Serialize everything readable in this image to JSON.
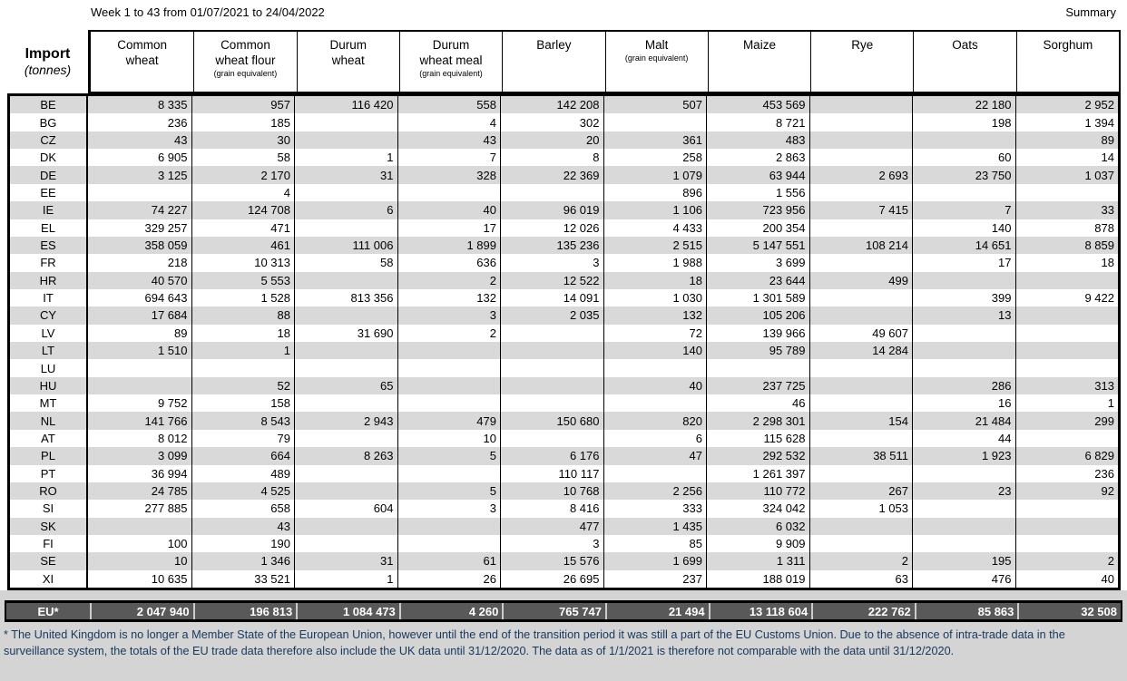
{
  "header": {
    "title": "Week 1 to 43 from 01/07/2021 to 24/04/2022",
    "summary_label": "Summary"
  },
  "table": {
    "corner": {
      "label": "Import",
      "unit": "(tonnes)"
    },
    "columns": [
      {
        "label": "Common\nwheat",
        "sub": ""
      },
      {
        "label": "Common\nwheat flour",
        "sub": "(grain equivalent)"
      },
      {
        "label": "Durum\nwheat",
        "sub": ""
      },
      {
        "label": "Durum\nwheat meal",
        "sub": "(grain equivalent)"
      },
      {
        "label": "Barley",
        "sub": ""
      },
      {
        "label": "Malt",
        "sub": "(grain equivalent)"
      },
      {
        "label": "Maize",
        "sub": ""
      },
      {
        "label": "Rye",
        "sub": ""
      },
      {
        "label": "Oats",
        "sub": ""
      },
      {
        "label": "Sorghum",
        "sub": ""
      }
    ],
    "rows": [
      {
        "country": "BE",
        "values": [
          "8 335",
          "957",
          "116 420",
          "558",
          "142 208",
          "507",
          "453 569",
          "",
          "22 180",
          "2 952"
        ]
      },
      {
        "country": "BG",
        "values": [
          "236",
          "185",
          "",
          "4",
          "302",
          "",
          "8 721",
          "",
          "198",
          "1 394"
        ]
      },
      {
        "country": "CZ",
        "values": [
          "43",
          "30",
          "",
          "43",
          "20",
          "361",
          "483",
          "",
          "",
          "89"
        ]
      },
      {
        "country": "DK",
        "values": [
          "6 905",
          "58",
          "1",
          "7",
          "8",
          "258",
          "2 863",
          "",
          "60",
          "14"
        ]
      },
      {
        "country": "DE",
        "values": [
          "3 125",
          "2 170",
          "31",
          "328",
          "22 369",
          "1 079",
          "63 944",
          "2 693",
          "23 750",
          "1 037"
        ]
      },
      {
        "country": "EE",
        "values": [
          "",
          "4",
          "",
          "",
          "",
          "896",
          "1 556",
          "",
          "",
          ""
        ]
      },
      {
        "country": "IE",
        "values": [
          "74 227",
          "124 708",
          "6",
          "40",
          "96 019",
          "1 106",
          "723 956",
          "7 415",
          "7",
          "33"
        ]
      },
      {
        "country": "EL",
        "values": [
          "329 257",
          "471",
          "",
          "17",
          "12 026",
          "4 433",
          "200 354",
          "",
          "140",
          "878"
        ]
      },
      {
        "country": "ES",
        "values": [
          "358 059",
          "461",
          "111 006",
          "1 899",
          "135 236",
          "2 515",
          "5 147 551",
          "108 214",
          "14 651",
          "8 859"
        ]
      },
      {
        "country": "FR",
        "values": [
          "218",
          "10 313",
          "58",
          "636",
          "3",
          "1 988",
          "3 699",
          "",
          "17",
          "18"
        ]
      },
      {
        "country": "HR",
        "values": [
          "40 570",
          "5 553",
          "",
          "2",
          "12 522",
          "18",
          "23 644",
          "499",
          "",
          ""
        ]
      },
      {
        "country": "IT",
        "values": [
          "694 643",
          "1 528",
          "813 356",
          "132",
          "14 091",
          "1 030",
          "1 301 589",
          "",
          "399",
          "9 422"
        ]
      },
      {
        "country": "CY",
        "values": [
          "17 684",
          "88",
          "",
          "3",
          "2 035",
          "132",
          "105 206",
          "",
          "13",
          ""
        ]
      },
      {
        "country": "LV",
        "values": [
          "89",
          "18",
          "31 690",
          "2",
          "",
          "72",
          "139 966",
          "49 607",
          "",
          ""
        ]
      },
      {
        "country": "LT",
        "values": [
          "1 510",
          "1",
          "",
          "",
          "",
          "140",
          "95 789",
          "14 284",
          "",
          ""
        ]
      },
      {
        "country": "LU",
        "values": [
          "",
          "",
          "",
          "",
          "",
          "",
          "",
          "",
          "",
          ""
        ]
      },
      {
        "country": "HU",
        "values": [
          "",
          "52",
          "65",
          "",
          "",
          "40",
          "237 725",
          "",
          "286",
          "313"
        ]
      },
      {
        "country": "MT",
        "values": [
          "9 752",
          "158",
          "",
          "",
          "",
          "",
          "46",
          "",
          "16",
          "1"
        ]
      },
      {
        "country": "NL",
        "values": [
          "141 766",
          "8 543",
          "2 943",
          "479",
          "150 680",
          "820",
          "2 298 301",
          "154",
          "21 484",
          "299"
        ]
      },
      {
        "country": "AT",
        "values": [
          "8 012",
          "79",
          "",
          "10",
          "",
          "6",
          "115 628",
          "",
          "44",
          ""
        ]
      },
      {
        "country": "PL",
        "values": [
          "3 099",
          "664",
          "8 263",
          "5",
          "6 176",
          "47",
          "292 532",
          "38 511",
          "1 923",
          "6 829"
        ]
      },
      {
        "country": "PT",
        "values": [
          "36 994",
          "489",
          "",
          "",
          "110 117",
          "",
          "1 261 397",
          "",
          "",
          "236"
        ]
      },
      {
        "country": "RO",
        "values": [
          "24 785",
          "4 525",
          "",
          "5",
          "10 768",
          "2 256",
          "110 772",
          "267",
          "23",
          "92"
        ]
      },
      {
        "country": "SI",
        "values": [
          "277 885",
          "658",
          "604",
          "3",
          "8 416",
          "333",
          "324 042",
          "1 053",
          "",
          ""
        ]
      },
      {
        "country": "SK",
        "values": [
          "",
          "43",
          "",
          "",
          "477",
          "1 435",
          "6 032",
          "",
          "",
          ""
        ]
      },
      {
        "country": "FI",
        "values": [
          "100",
          "190",
          "",
          "",
          "3",
          "85",
          "9 909",
          "",
          "",
          ""
        ]
      },
      {
        "country": "SE",
        "values": [
          "10",
          "1 346",
          "31",
          "61",
          "15 576",
          "1 699",
          "1 311",
          "2",
          "195",
          "2"
        ]
      },
      {
        "country": "XI",
        "values": [
          "10 635",
          "33 521",
          "1",
          "26",
          "26 695",
          "237",
          "188 019",
          "63",
          "476",
          "40"
        ]
      }
    ],
    "total": {
      "label": "EU*",
      "values": [
        "2 047 940",
        "196 813",
        "1 084 473",
        "4 260",
        "765 747",
        "21 494",
        "13 118 604",
        "222 762",
        "85 863",
        "32 508"
      ]
    }
  },
  "footnote": "* The United Kingdom is no longer a Member State of the European Union, however until the end of the transition period it was still a part of the EU Customs Union. Due to the absence of intra-trade data in the surveillance system, the totals of the EU trade data  therefore also include the UK data until 31/12/2020. The data as of 1/1/2021 is therefore not comparable with the data until 31/12/2020.",
  "colors": {
    "stripe": "#d9d9d9",
    "total_row_bg": "#595959",
    "footnote_text": "#17375E",
    "bottom_section_bg": "#d4d4d4"
  }
}
